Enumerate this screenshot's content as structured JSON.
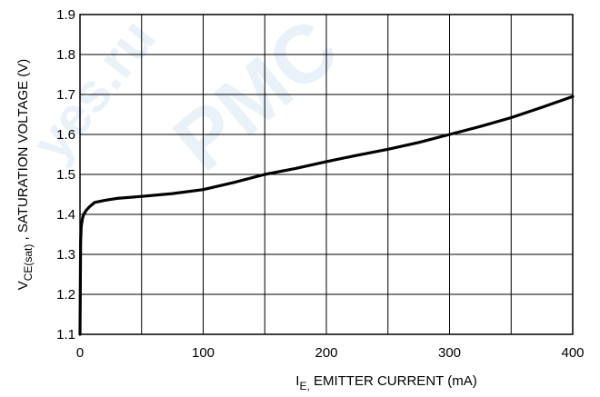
{
  "chart_data": {
    "type": "line",
    "title": "",
    "xlabel": {
      "main": "I",
      "sub": "E,",
      "rest": " EMITTER CURRENT (mA)"
    },
    "ylabel": {
      "main": "V",
      "sub": "CE(sat)",
      "rest": " , SATURATION VOLTAGE (V)"
    },
    "xlim": [
      0,
      400
    ],
    "ylim": [
      1.1,
      1.9
    ],
    "x_ticks": [
      0,
      100,
      200,
      300,
      400
    ],
    "x_tick_labels": [
      "0",
      "100",
      "200",
      "300",
      "400"
    ],
    "y_ticks": [
      1.1,
      1.2,
      1.3,
      1.4,
      1.5,
      1.6,
      1.7,
      1.8,
      1.9
    ],
    "y_tick_labels": [
      "1.1",
      "1.2",
      "1.3",
      "1.4",
      "1.5",
      "1.6",
      "1.7",
      "1.8",
      "1.9"
    ],
    "x_minor_grid": [
      50,
      150,
      250,
      350
    ],
    "grid": true,
    "series": [
      {
        "x": [
          0.0,
          0.5,
          1,
          2,
          3,
          5,
          8,
          12,
          20,
          30,
          50,
          75,
          100,
          125,
          150,
          175,
          200,
          225,
          250,
          275,
          300,
          325,
          350,
          375,
          400
        ],
        "y": [
          1.1,
          1.33,
          1.37,
          1.39,
          1.4,
          1.41,
          1.42,
          1.43,
          1.435,
          1.44,
          1.445,
          1.452,
          1.462,
          1.48,
          1.5,
          1.515,
          1.532,
          1.548,
          1.563,
          1.58,
          1.6,
          1.62,
          1.642,
          1.668,
          1.695
        ],
        "color": "#000000"
      }
    ]
  },
  "watermark": {
    "lines": [
      "yes.ru",
      "PMC"
    ],
    "color": "#9fc3e6"
  }
}
